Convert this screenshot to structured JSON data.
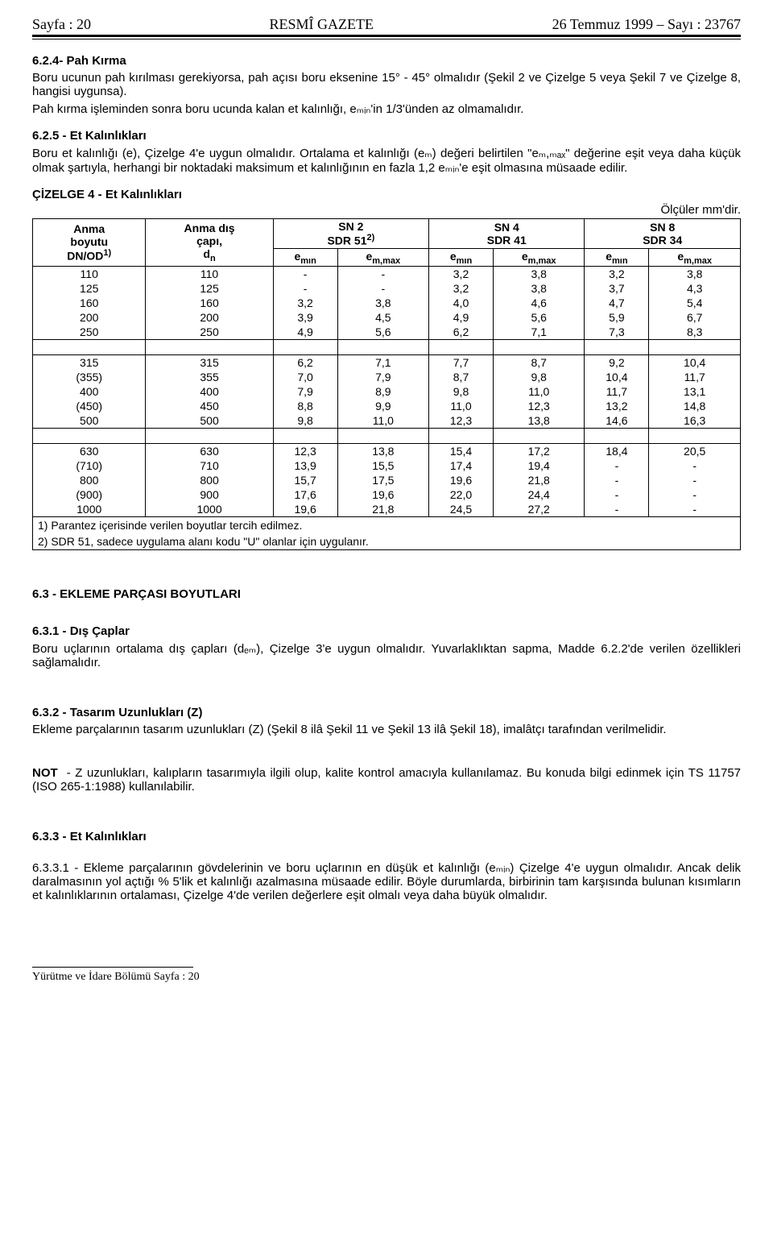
{
  "header": {
    "left": "Sayfa : 20",
    "center": "RESMÎ GAZETE",
    "right": "26 Temmuz 1999 – Sayı : 23767"
  },
  "s624": {
    "title": "6.2.4- Pah Kırma",
    "p1": "Boru ucunun pah kırılması gerekiyorsa, pah açısı boru eksenine 15° - 45° olmalıdır (Şekil 2 ve Çizelge 5 veya Şekil 7 ve Çizelge 8, hangisi uygunsa).",
    "p2": "Pah kırma işleminden sonra boru ucunda kalan et kalınlığı, eₘᵢₙ'in 1/3'ünden az olmamalıdır."
  },
  "s625": {
    "title": "6.2.5 - Et Kalınlıkları",
    "p1": "Boru et kalınlığı (e), Çizelge 4'e uygun olmalıdır. Ortalama et kalınlığı (eₘ) değeri belirtilen \"eₘ,ₘₐₓ\" değerine eşit veya daha küçük olmak şartıyla, herhangi bir noktadaki maksimum et kalınlığının en fazla 1,2 eₘᵢₙ'e eşit olmasına müsaade edilir."
  },
  "table4": {
    "title": "ÇİZELGE 4 - Et Kalınlıkları",
    "unit": "Ölçüler mm'dir.",
    "head": {
      "c1a": "Anma",
      "c1b": "boyutu",
      "c1c": "DN/OD",
      "c2a": "Anma dış",
      "c2b": "çapı,",
      "c2c": "d",
      "g1": "SN 2",
      "g1b": "SDR 51",
      "g2": "SN 4",
      "g2b": "SDR 41",
      "g3": "SN 8",
      "g3b": "SDR 34",
      "emin": "e",
      "emax": "e"
    },
    "groups": [
      [
        [
          "110",
          "110",
          "-",
          "-",
          "3,2",
          "3,8",
          "3,2",
          "3,8"
        ],
        [
          "125",
          "125",
          "-",
          "-",
          "3,2",
          "3,8",
          "3,7",
          "4,3"
        ],
        [
          "160",
          "160",
          "3,2",
          "3,8",
          "4,0",
          "4,6",
          "4,7",
          "5,4"
        ],
        [
          "200",
          "200",
          "3,9",
          "4,5",
          "4,9",
          "5,6",
          "5,9",
          "6,7"
        ],
        [
          "250",
          "250",
          "4,9",
          "5,6",
          "6,2",
          "7,1",
          "7,3",
          "8,3"
        ]
      ],
      [
        [
          "315",
          "315",
          "6,2",
          "7,1",
          "7,7",
          "8,7",
          "9,2",
          "10,4"
        ],
        [
          "(355)",
          "355",
          "7,0",
          "7,9",
          "8,7",
          "9,8",
          "10,4",
          "11,7"
        ],
        [
          "400",
          "400",
          "7,9",
          "8,9",
          "9,8",
          "11,0",
          "11,7",
          "13,1"
        ],
        [
          "(450)",
          "450",
          "8,8",
          "9,9",
          "11,0",
          "12,3",
          "13,2",
          "14,8"
        ],
        [
          "500",
          "500",
          "9,8",
          "11,0",
          "12,3",
          "13,8",
          "14,6",
          "16,3"
        ]
      ],
      [
        [
          "630",
          "630",
          "12,3",
          "13,8",
          "15,4",
          "17,2",
          "18,4",
          "20,5"
        ],
        [
          "(710)",
          "710",
          "13,9",
          "15,5",
          "17,4",
          "19,4",
          "-",
          "-"
        ],
        [
          "800",
          "800",
          "15,7",
          "17,5",
          "19,6",
          "21,8",
          "-",
          "-"
        ],
        [
          "(900)",
          "900",
          "17,6",
          "19,6",
          "22,0",
          "24,4",
          "-",
          "-"
        ],
        [
          "1000",
          "1000",
          "19,6",
          "21,8",
          "24,5",
          "27,2",
          "-",
          "-"
        ]
      ]
    ],
    "foot1": "1) Parantez içerisinde verilen boyutlar tercih edilmez.",
    "foot2": "2) SDR 51, sadece uygulama alanı kodu \"U\" olanlar için uygulanır."
  },
  "s63": {
    "title": "6.3 - EKLEME PARÇASI BOYUTLARI"
  },
  "s631": {
    "title": "6.3.1 - Dış Çaplar",
    "p1": "Boru uçlarının ortalama dış çapları (dₑₘ), Çizelge 3'e uygun olmalıdır. Yuvarlaklıktan sapma, Madde 6.2.2'de verilen özellikleri sağlamalıdır."
  },
  "s632": {
    "title": "6.3.2 - Tasarım Uzunlukları (Z)",
    "p1": "Ekleme parçalarının tasarım uzunlukları (Z) (Şekil 8 ilâ Şekil 11 ve Şekil 13 ilâ Şekil 18), imalâtçı tarafından verilmelidir."
  },
  "not": {
    "label": "NOT",
    "p1": "- Z uzunlukları, kalıpların tasarımıyla ilgili olup, kalite kontrol amacıyla kullanılamaz. Bu konuda bilgi edinmek için TS 11757 (ISO 265-1:1988) kullanılabilir."
  },
  "s633": {
    "title": "6.3.3 - Et Kalınlıkları"
  },
  "s6331": {
    "p1": "6.3.3.1 - Ekleme parçalarının gövdelerinin ve boru uçlarının en düşük et kalınlığı (eₘᵢₙ) Çizelge 4'e uygun olmalıdır. Ancak delik daralmasının yol açtığı % 5'lik et kalınlığı azalmasına müsaade edilir. Böyle durumlarda, birbirinin tam karşısında bulunan kısımların et kalınlıklarının ortalaması, Çizelge 4'de verilen değerlere eşit olmalı veya daha büyük olmalıdır."
  },
  "footer": "Yürütme ve İdare Bölümü Sayfa : 20"
}
